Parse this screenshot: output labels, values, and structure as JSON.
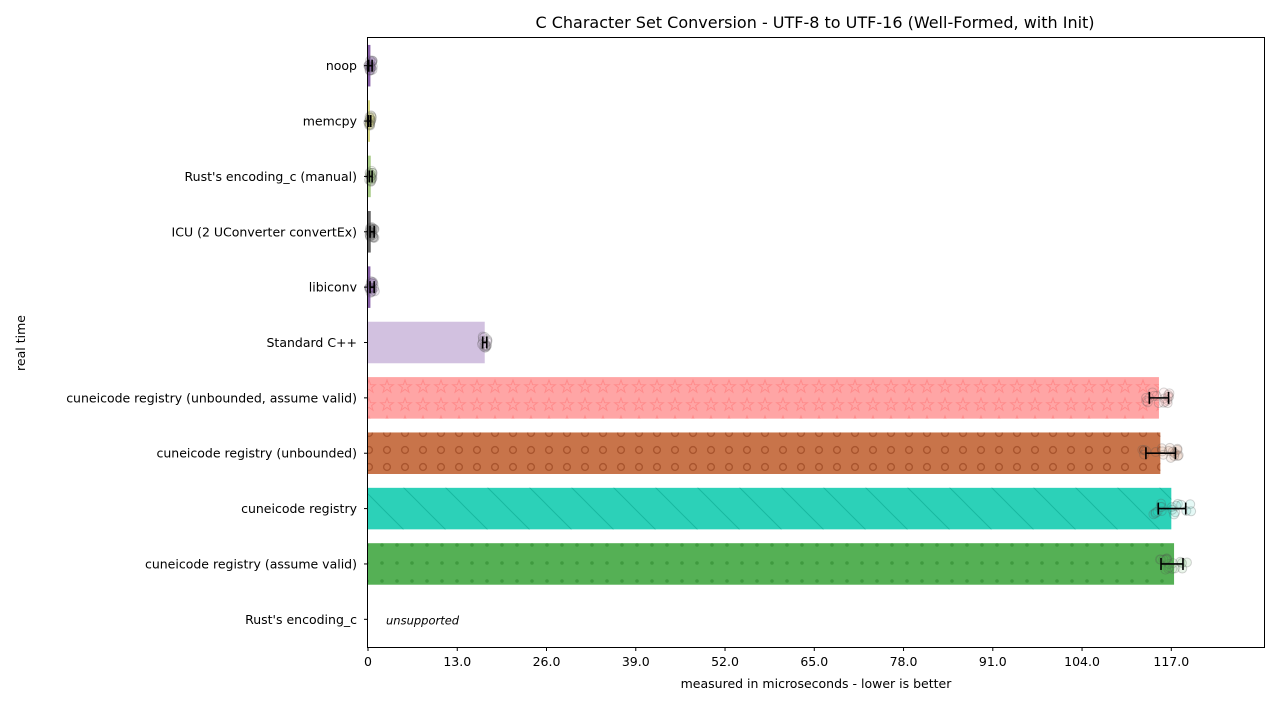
{
  "chart_data": {
    "type": "bar",
    "orientation": "horizontal",
    "title": "C Character Set Conversion - UTF-8 to UTF-16 (Well-Formed, with Init)",
    "xlabel": "measured in microseconds - lower is better",
    "ylabel": "real time",
    "xlim": [
      0,
      130.5
    ],
    "x_ticks": [
      "0",
      "13.0",
      "26.0",
      "39.0",
      "52.0",
      "65.0",
      "78.0",
      "91.0",
      "104.0",
      "117.0"
    ],
    "grid": false,
    "categories": [
      "noop",
      "memcpy",
      "Rust's encoding_c (manual)",
      "ICU (2 UConverter convertEx)",
      "libiconv",
      "Standard C++",
      "cuneicode registry (unbounded, assume valid)",
      "cuneicode registry (unbounded)",
      "cuneicode registry",
      "cuneicode registry (assume valid)",
      "Rust's encoding_c"
    ],
    "values": [
      0.35,
      0.25,
      0.4,
      0.4,
      0.35,
      17.0,
      115.2,
      115.4,
      117.0,
      117.4,
      null
    ],
    "error_low": [
      0.1,
      0.1,
      0.2,
      0.3,
      0.3,
      16.7,
      113.8,
      113.3,
      115.1,
      115.5,
      null
    ],
    "error_high": [
      0.6,
      0.4,
      0.6,
      0.9,
      0.9,
      17.3,
      116.6,
      117.6,
      119.1,
      118.7,
      null
    ],
    "colors": [
      "#7b4f9e",
      "#d4d47a",
      "#9fc67a",
      "#555555",
      "#7b4f9e",
      "#d2c1e0",
      "#ffa5a5",
      "#c8744a",
      "#2cd1b8",
      "#55b055",
      "#ffffff"
    ],
    "patterns": [
      "none",
      "none",
      "none",
      "none",
      "none",
      "none",
      "stars",
      "circles",
      "diagonal",
      "dots",
      "none"
    ],
    "annotations": [
      {
        "category": "Rust's encoding_c",
        "text": "unsupported"
      }
    ]
  }
}
